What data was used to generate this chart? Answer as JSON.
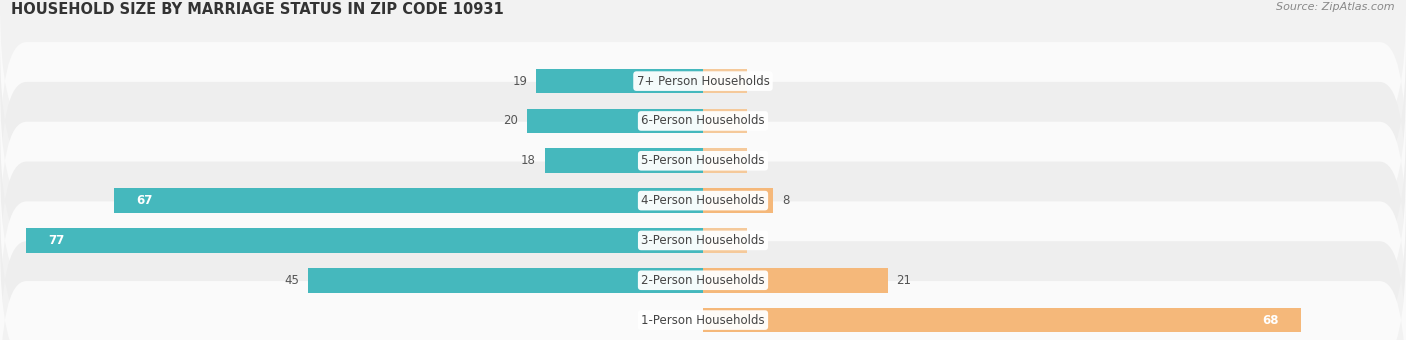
{
  "title": "HOUSEHOLD SIZE BY MARRIAGE STATUS IN ZIP CODE 10931",
  "source": "Source: ZipAtlas.com",
  "categories": [
    "7+ Person Households",
    "6-Person Households",
    "5-Person Households",
    "4-Person Households",
    "3-Person Households",
    "2-Person Households",
    "1-Person Households"
  ],
  "family_values": [
    19,
    20,
    18,
    67,
    77,
    45,
    0
  ],
  "nonfamily_values": [
    0,
    0,
    0,
    8,
    0,
    21,
    68
  ],
  "family_color": "#45b8bd",
  "nonfamily_color": "#f5b87a",
  "nonfamily_stub_color": "#f5c99a",
  "xlim": [
    -80,
    80
  ],
  "bar_height": 0.62,
  "bg_color": "#f2f2f2",
  "row_colors": [
    "#fafafa",
    "#eeeeee"
  ],
  "title_fontsize": 10.5,
  "label_fontsize": 8.5,
  "value_fontsize": 8.5,
  "tick_fontsize": 8.5,
  "source_fontsize": 8
}
